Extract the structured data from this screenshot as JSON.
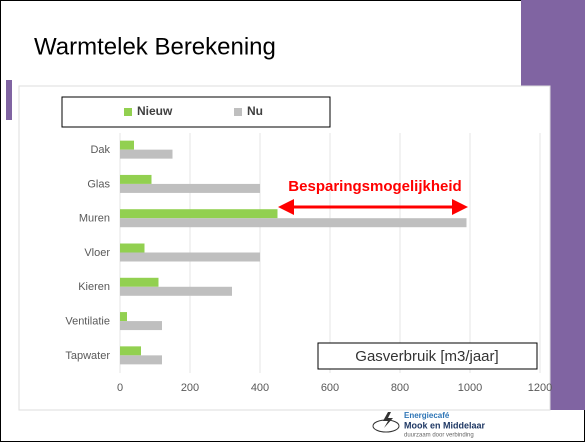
{
  "slide": {
    "title": "Warmtelek Berekening"
  },
  "chart_data": {
    "type": "hbar",
    "categories": [
      "Dak",
      "Glas",
      "Muren",
      "Vloer",
      "Kieren",
      "Ventilatie",
      "Tapwater"
    ],
    "series": [
      {
        "name": "Nieuw",
        "color": "#92d050",
        "values": [
          40,
          90,
          450,
          70,
          110,
          20,
          60
        ]
      },
      {
        "name": "Nu",
        "color": "#bfbfbf",
        "values": [
          150,
          400,
          990,
          400,
          320,
          120,
          120
        ]
      }
    ],
    "xlim": [
      0,
      1200
    ],
    "xticks": [
      0,
      200,
      400,
      600,
      800,
      1000,
      1200
    ],
    "grid": true,
    "x_label": "Gasverbruik  [m3/jaar]",
    "annotation": "Besparingsmogelijkheid"
  },
  "logo": {
    "line1": "Energiecafé",
    "line2": "Mook en Middelaar",
    "line3": "duurzaam door verbinding"
  }
}
